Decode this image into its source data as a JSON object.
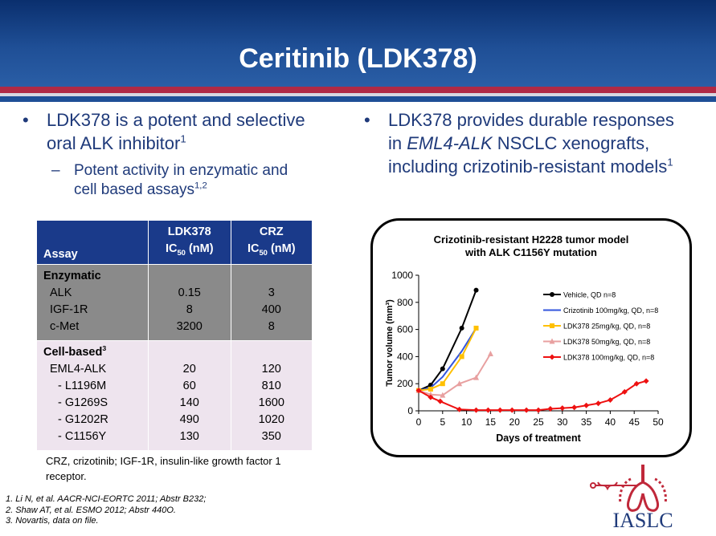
{
  "title": "Ceritinib (LDK378)",
  "left": {
    "bullet1_line1": "LDK378 is a potent and selective",
    "bullet1_line2": "oral ALK inhibitor",
    "bullet1_sup": "1",
    "sub1_line1": "Potent activity in enzymatic and",
    "sub1_line2": "cell based assays",
    "sub1_sup": "1,2"
  },
  "right": {
    "line1": "LDK378 provides durable responses",
    "line2_prefix": "in ",
    "line2_italic": "EML4-ALK",
    "line2_suffix": " NSCLC xenografts,",
    "line3": "including crizotinib-resistant models",
    "line3_sup": "1"
  },
  "table": {
    "h_assay": "Assay",
    "h_ldk": "LDK378",
    "h_crz": "CRZ",
    "h_ic": "IC",
    "h_sub": "50",
    "h_unit": " (nM)",
    "enzymatic": {
      "label": "Enzymatic",
      "rows": [
        {
          "name": "ALK",
          "ldk": "0.15",
          "crz": "3"
        },
        {
          "name": "IGF-1R",
          "ldk": "8",
          "crz": "400"
        },
        {
          "name": "c-Met",
          "ldk": "3200",
          "crz": "8"
        }
      ]
    },
    "cell": {
      "label": "Cell-based",
      "sup": "3",
      "rows": [
        {
          "name": "EML4-ALK",
          "ldk": "20",
          "crz": "120"
        },
        {
          "name": "- L1196M",
          "ldk": "60",
          "crz": "810"
        },
        {
          "name": "- G1269S",
          "ldk": "140",
          "crz": "1600"
        },
        {
          "name": "- G1202R",
          "ldk": "490",
          "crz": "1020"
        },
        {
          "name": "- C1156Y",
          "ldk": "130",
          "crz": "350"
        }
      ]
    }
  },
  "footnote": "CRZ, crizotinib; IGF-1R, insulin-like growth factor 1 receptor.",
  "references": [
    "1. Li N, et al. AACR-NCI-EORTC 2011; Abstr B232;",
    "2. Shaw AT, et al. ESMO 2012; Abstr 440O.",
    "3. Novartis, data on file."
  ],
  "logo_text": "IASLC",
  "chart_data": {
    "type": "line",
    "title": "Crizotinib-resistant H2228 tumor model with ALK C1156Y mutation",
    "title_line1": "Crizotinib-resistant H2228 tumor model",
    "title_line2": "with ALK C1156Y mutation",
    "xlabel": "Days of treatment",
    "ylabel": "Tumor volume (mm³)",
    "xlim": [
      0,
      50
    ],
    "ylim": [
      0,
      1000
    ],
    "xticks": [
      0,
      5,
      10,
      15,
      20,
      25,
      30,
      35,
      40,
      45,
      50
    ],
    "yticks": [
      0,
      200,
      400,
      600,
      800,
      1000
    ],
    "legend_position": "right",
    "series": [
      {
        "name": "Vehicle, QD n=8",
        "color": "#000000",
        "marker": "circle",
        "x": [
          0,
          2.5,
          5,
          9,
          12
        ],
        "y": [
          150,
          190,
          310,
          610,
          890
        ]
      },
      {
        "name": "Crizotinib 100mg/kg, QD, n=8",
        "color": "#3355dd",
        "marker": "none",
        "x": [
          0,
          2.5,
          5,
          9,
          12
        ],
        "y": [
          150,
          170,
          250,
          440,
          610
        ]
      },
      {
        "name": "LDK378 25mg/kg, QD, n=8",
        "color": "#ffc000",
        "marker": "square",
        "x": [
          0,
          2.5,
          5,
          9,
          12
        ],
        "y": [
          150,
          160,
          200,
          400,
          610
        ]
      },
      {
        "name": "LDK378 50mg/kg, QD, n=8",
        "color": "#e8a0a0",
        "marker": "triangle",
        "x": [
          0,
          2.5,
          5,
          8.5,
          12,
          15
        ],
        "y": [
          150,
          120,
          115,
          200,
          245,
          420
        ]
      },
      {
        "name": "LDK378 100mg/kg, QD, n=8",
        "color": "#ee1111",
        "marker": "diamond",
        "x": [
          0,
          2.5,
          4.5,
          8.5,
          12,
          14.5,
          17,
          19.5,
          22.5,
          25,
          27.5,
          30,
          32.5,
          35,
          37.5,
          40,
          43,
          45.5,
          47.5
        ],
        "y": [
          150,
          100,
          70,
          10,
          5,
          5,
          5,
          5,
          5,
          5,
          15,
          20,
          25,
          40,
          55,
          80,
          140,
          200,
          220
        ]
      }
    ]
  }
}
